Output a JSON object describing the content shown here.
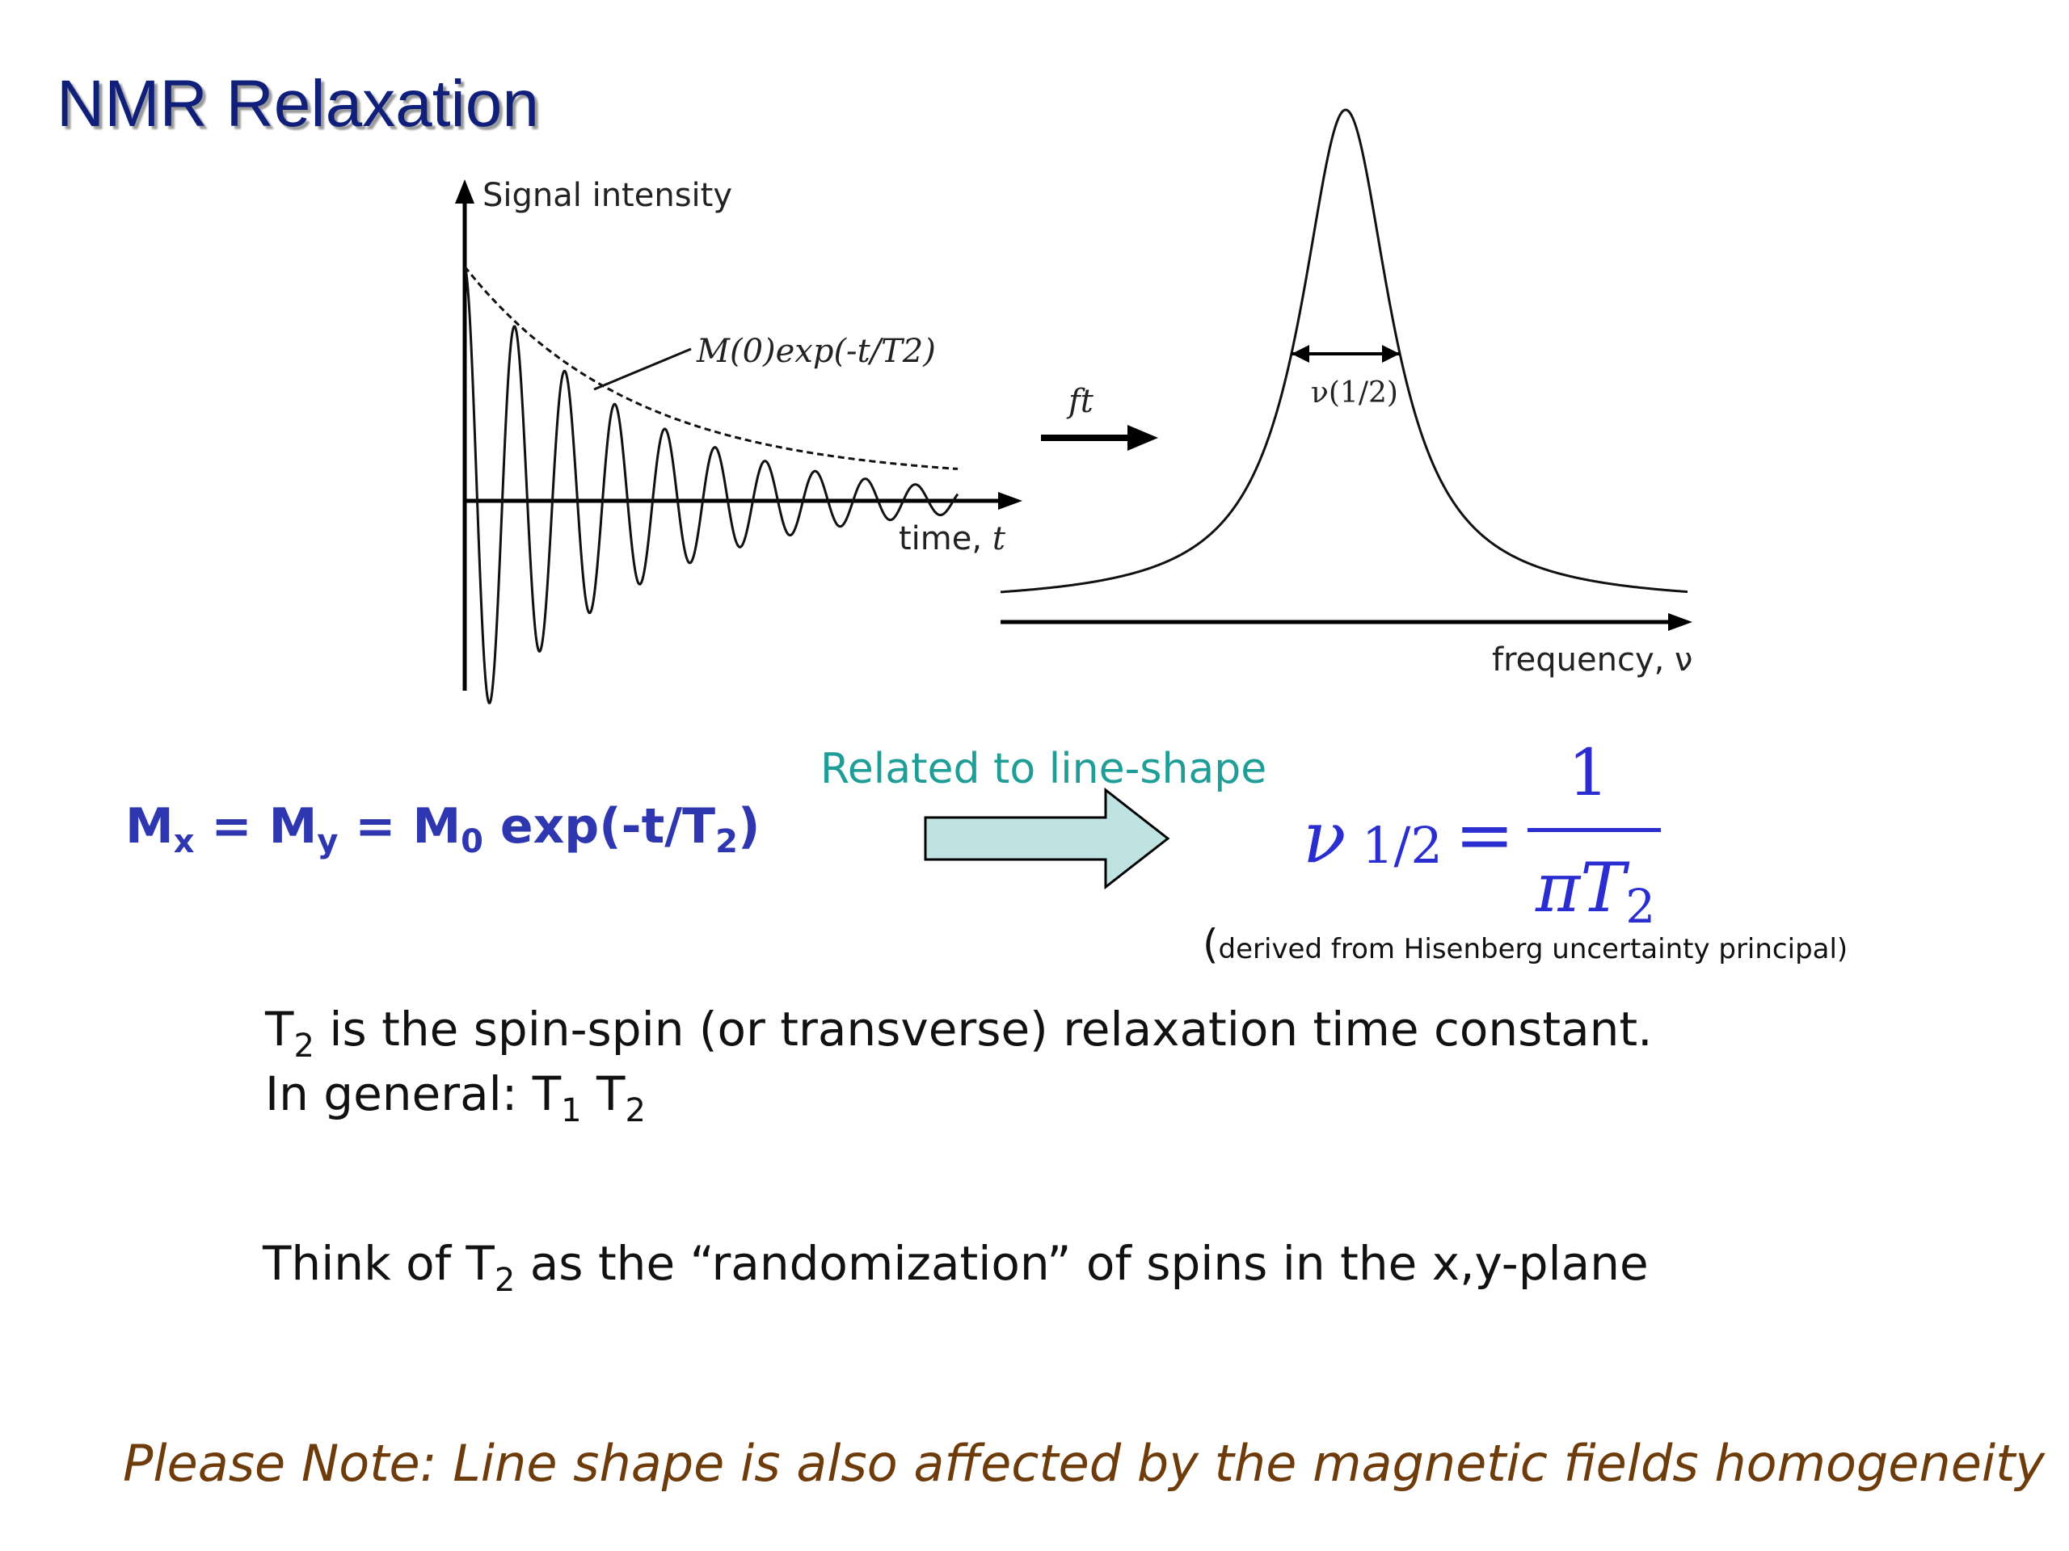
{
  "title": "NMR Relaxation",
  "diagram": {
    "fid": {
      "ylabel": "Signal intensity",
      "envelope_label": "M(0)exp(-t/T2)",
      "xlabel": "time, ",
      "xlabel_var": "t"
    },
    "transform": {
      "label": "ft"
    },
    "spectrum": {
      "width_label": "ν(1/2)",
      "xlabel": "frequency, ν"
    }
  },
  "equation": {
    "M": "M",
    "x_sub": "x",
    "y_sub": "y",
    "zero_sub": "0",
    "eq": " = ",
    "exp_prefix": " exp(-t/T",
    "two_sub": "2",
    "close": ")"
  },
  "relation": {
    "label": "Related to line-shape",
    "arrow_color": "#bfe3e3",
    "formula": {
      "numerator": "1",
      "nu": "ν",
      "nu_sub": "1/2",
      "equals": "=",
      "denominator": "πT",
      "den_sub": "2"
    },
    "note_paren_open": "(",
    "note": "derived from Hisenberg uncertainty principal)"
  },
  "body": {
    "line1_T": "T",
    "line1_sub": "2",
    "line1_rest": " is the spin-spin (or transverse) relaxation time constant.",
    "line2_prefix": "In general: T",
    "line2_sub1": "1",
    "line2_mid": "  T",
    "line2_sub2": "2",
    "line3_prefix": "Think of T",
    "line3_sub": "2",
    "line3_rest": " as the “randomization” of spins in the x,y-plane"
  },
  "footer_note": "Please Note: Line shape is also affected by the magnetic fields homogeneity",
  "colors": {
    "title": "#0f1f7a",
    "equation": "#2e37b0",
    "relation_label": "#1f9e98",
    "formula": "#2a2ed0",
    "footer": "#6e3b0a"
  }
}
